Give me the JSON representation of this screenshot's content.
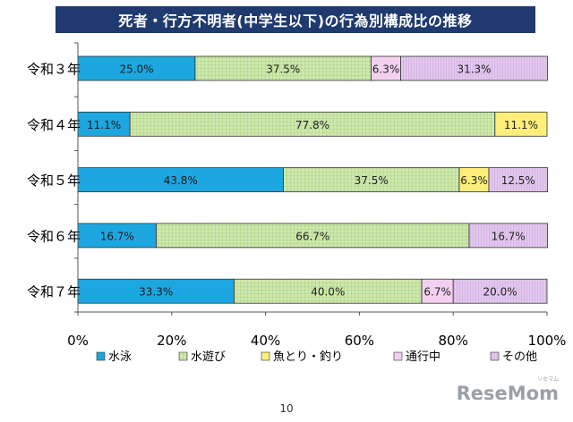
{
  "chart_data": {
    "type": "bar",
    "orientation": "horizontal",
    "stacked": true,
    "title": "死者・行方不明者(中学生以下)の行為別構成比の推移",
    "categories": [
      "令和３年",
      "令和４年",
      "令和５年",
      "令和６年",
      "令和７年"
    ],
    "series": [
      {
        "name": "水泳",
        "color": "#1ca7e0",
        "pattern": "solid",
        "values": [
          25.0,
          11.1,
          43.8,
          16.7,
          33.3
        ],
        "labels": [
          "25.0%",
          "11.1%",
          "43.8%",
          "16.7%",
          "33.3%"
        ]
      },
      {
        "name": "水遊び",
        "color": "#cfe8b0",
        "pattern": "grid",
        "values": [
          37.5,
          77.8,
          37.5,
          66.7,
          40.0
        ],
        "labels": [
          "37.5%",
          "77.8%",
          "37.5%",
          "66.7%",
          "40.0%"
        ]
      },
      {
        "name": "魚とり・釣り",
        "color": "#ffef7a",
        "pattern": "solid",
        "values": [
          0,
          11.1,
          6.3,
          0,
          0
        ],
        "labels": [
          "",
          "11.1%",
          "6.3%",
          "",
          ""
        ]
      },
      {
        "name": "通行中",
        "color": "#f4d0f0",
        "pattern": "solid",
        "values": [
          6.3,
          0,
          0,
          0,
          6.7
        ],
        "labels": [
          "6.3%",
          "",
          "",
          "",
          "6.7%"
        ]
      },
      {
        "name": "その他",
        "color": "#e3c8ee",
        "pattern": "stripes",
        "values": [
          31.3,
          0,
          12.5,
          16.7,
          20.0
        ],
        "labels": [
          "31.3%",
          "",
          "12.5%",
          "16.7%",
          "20.0%"
        ]
      }
    ],
    "xlim": [
      0,
      100
    ],
    "xticks": [
      "0%",
      "20%",
      "40%",
      "60%",
      "80%",
      "100%"
    ],
    "xlabel": "",
    "ylabel": "",
    "grid": false,
    "legend": "bottom"
  },
  "page_number": "10",
  "watermark": {
    "text": "ReseMom",
    "sub": "リセマム"
  }
}
